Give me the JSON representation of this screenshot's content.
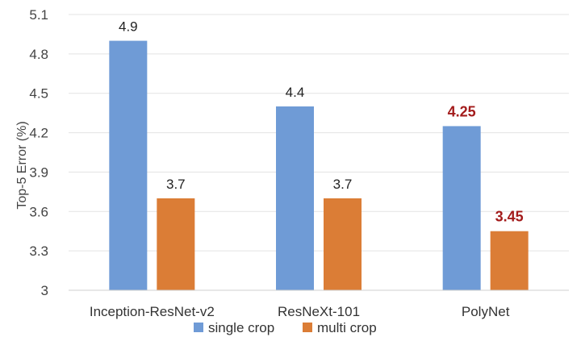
{
  "chart_data": {
    "type": "bar",
    "title": "",
    "xlabel": "",
    "ylabel": "Top-5 Error (%)",
    "ylim": [
      3,
      5.1
    ],
    "yticks": [
      3,
      3.3,
      3.6,
      3.9,
      4.2,
      4.5,
      4.8,
      5.1
    ],
    "ytick_labels": [
      "3",
      "3.3",
      "3.6",
      "3.9",
      "4.2",
      "4.5",
      "4.8",
      "5.1"
    ],
    "grid": true,
    "legend_position": "bottom",
    "categories": [
      "Inception-ResNet-v2",
      "ResNeXt-101",
      "PolyNet"
    ],
    "series": [
      {
        "name": "single crop",
        "color": "#6f9bd6",
        "values": [
          4.9,
          4.4,
          4.25
        ],
        "labels": [
          "4.9",
          "4.4",
          "4.25"
        ],
        "label_colors": [
          "#222222",
          "#222222",
          "#a31b1b"
        ]
      },
      {
        "name": "multi crop",
        "color": "#db7d36",
        "values": [
          3.7,
          3.7,
          3.45
        ],
        "labels": [
          "3.7",
          "3.7",
          "3.45"
        ],
        "label_colors": [
          "#222222",
          "#222222",
          "#a31b1b"
        ]
      }
    ]
  }
}
